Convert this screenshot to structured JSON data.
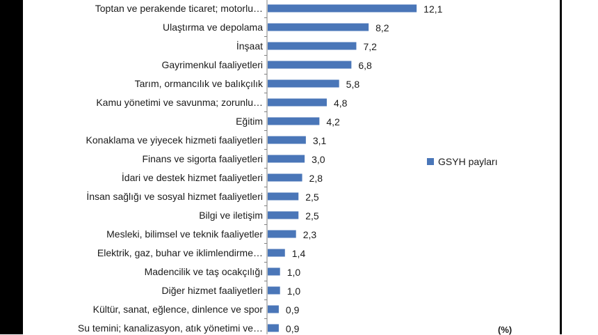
{
  "chart_data": {
    "type": "bar",
    "orientation": "horizontal",
    "categories": [
      "Toptan ve perakende ticaret; motorlu…",
      "Ulaştırma ve depolama",
      "İnşaat",
      "Gayrimenkul faaliyetleri",
      "Tarım, ormancılık ve balıkçılık",
      "Kamu yönetimi ve savunma; zorunlu…",
      "Eğitim",
      "Konaklama ve yiyecek hizmeti faaliyetleri",
      "Finans ve sigorta faaliyetleri",
      "İdari ve destek hizmet faaliyetleri",
      "İnsan sağlığı ve sosyal hizmet faaliyetleri",
      "Bilgi ve iletişim",
      "Mesleki, bilimsel ve teknik faaliyetler",
      "Elektrik, gaz, buhar ve iklimlendirme…",
      "Madencilik ve taş ocakçılığı",
      "Diğer hizmet faaliyetleri",
      "Kültür, sanat, eğlence, dinlence ve spor",
      "Su temini; kanalizasyon, atık yönetimi ve…"
    ],
    "series": [
      {
        "name": "GSYH payları",
        "values": [
          12.1,
          8.2,
          7.2,
          6.8,
          5.8,
          4.8,
          4.2,
          3.1,
          3.0,
          2.8,
          2.5,
          2.5,
          2.3,
          1.4,
          1.0,
          1.0,
          0.9,
          0.9
        ],
        "labels": [
          "12,1",
          "8,2",
          "7,2",
          "6,8",
          "5,8",
          "4,8",
          "4,2",
          "3,1",
          "3,0",
          "2,8",
          "2,5",
          "2,5",
          "2,3",
          "1,4",
          "1,0",
          "1,0",
          "0,9",
          "0,9"
        ]
      }
    ],
    "unit": "(%)",
    "legend_position": "right",
    "grid": false,
    "colors": {
      "bar": "#4a76b8",
      "axis": "#808080",
      "text": "#1a1a1a",
      "border": "#000000"
    }
  }
}
